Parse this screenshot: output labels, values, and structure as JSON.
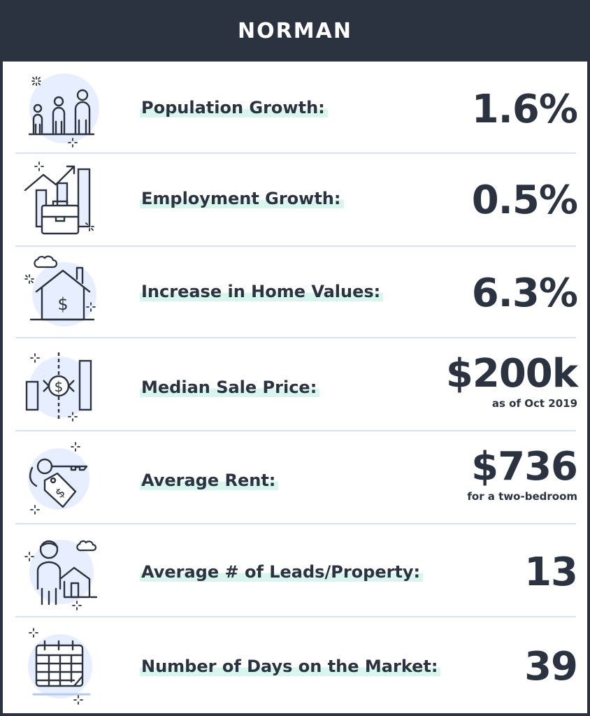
{
  "header": {
    "title": "NORMAN"
  },
  "rows": [
    {
      "icon": "family-icon",
      "label": "Population Growth:",
      "value": "1.6%",
      "note": ""
    },
    {
      "icon": "employment-chart-icon",
      "label": "Employment Growth:",
      "value": "0.5%",
      "note": ""
    },
    {
      "icon": "home-value-icon",
      "label": "Increase in Home Values:",
      "value": "6.3%",
      "note": ""
    },
    {
      "icon": "price-exchange-icon",
      "label": "Median Sale Price:",
      "value": "$200k",
      "note": "as of Oct 2019"
    },
    {
      "icon": "key-tag-icon",
      "label": "Average Rent:",
      "value": "$736",
      "note": "for a two-bedroom"
    },
    {
      "icon": "agent-house-icon",
      "label": "Average # of Leads/Property:",
      "value": "13",
      "note": ""
    },
    {
      "icon": "calendar-icon",
      "label": "Number of Days on the Market:",
      "value": "39",
      "note": ""
    }
  ],
  "colors": {
    "header_bg": "#2b3340",
    "text": "#2b3340",
    "divider": "#d6e4f5",
    "icon_fill": "#e6eeff",
    "highlight": "#d9f6ee"
  }
}
